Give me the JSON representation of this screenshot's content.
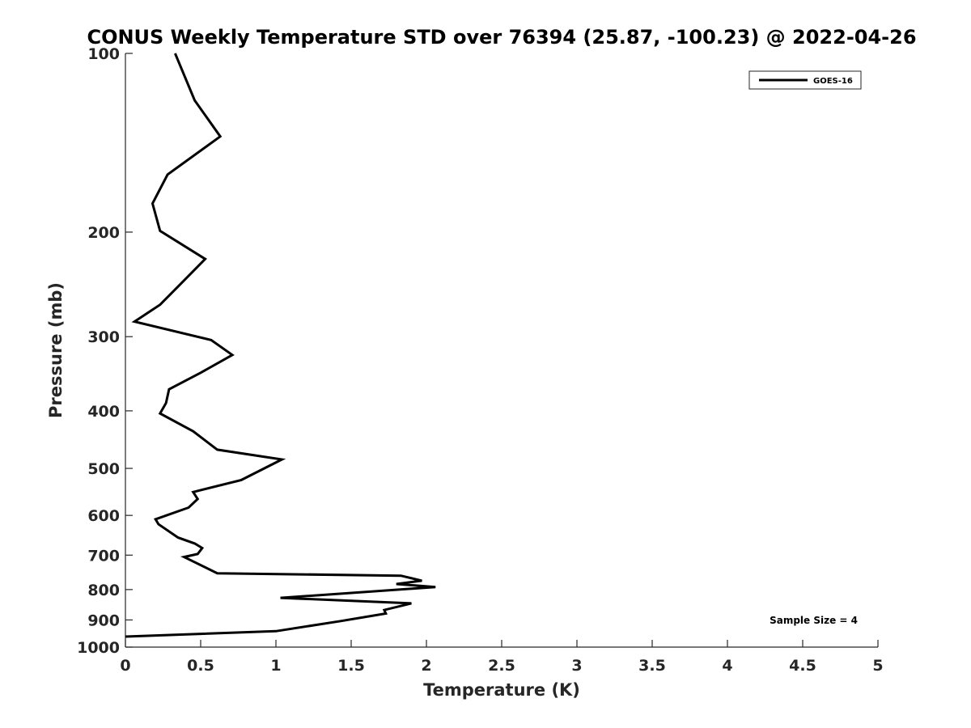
{
  "chart_data": {
    "type": "line",
    "title": "CONUS Weekly Temperature STD over 76394 (25.87, -100.23) @ 2022-04-26",
    "xlabel": "Temperature (K)",
    "ylabel": "Pressure (mb)",
    "xlim": [
      0,
      5
    ],
    "ylim": [
      1000,
      100
    ],
    "yscale": "log",
    "y_inverted": true,
    "xticks": [
      0,
      0.5,
      1,
      1.5,
      2,
      2.5,
      3,
      3.5,
      4,
      4.5,
      5
    ],
    "xtick_labels": [
      "0",
      "0.5",
      "1",
      "1.5",
      "2",
      "2.5",
      "3",
      "3.5",
      "4",
      "4.5",
      "5"
    ],
    "yticks": [
      100,
      200,
      300,
      400,
      500,
      600,
      700,
      800,
      900,
      1000
    ],
    "ytick_labels": [
      "100",
      "200",
      "300",
      "400",
      "500",
      "600",
      "700",
      "800",
      "900",
      "1000"
    ],
    "grid": false,
    "legend_position": "top-right",
    "annotation": "Sample Size = 4",
    "line_color": "#000000",
    "series": [
      {
        "name": "GOES-16",
        "x": [
          0.33,
          0.46,
          0.63,
          0.28,
          0.18,
          0.23,
          0.53,
          0.35,
          0.23,
          0.06,
          0.57,
          0.71,
          0.5,
          0.29,
          0.27,
          0.23,
          0.45,
          0.61,
          1.04,
          0.77,
          0.45,
          0.48,
          0.42,
          0.2,
          0.22,
          0.35,
          0.46,
          0.51,
          0.48,
          0.39,
          0.61,
          1.83,
          1.97,
          1.8,
          2.06,
          1.03,
          1.9,
          1.72,
          1.73,
          1.43,
          1.0,
          0.0
        ],
        "y": [
          100,
          120,
          138,
          160,
          179,
          199,
          222,
          247,
          265,
          283,
          304,
          322,
          345,
          368,
          388,
          404,
          433,
          465,
          483,
          523,
          548,
          563,
          582,
          609,
          621,
          654,
          669,
          681,
          697,
          705,
          751,
          758,
          773,
          783,
          792,
          826,
          844,
          866,
          878,
          904,
          940,
          960
        ]
      }
    ]
  }
}
